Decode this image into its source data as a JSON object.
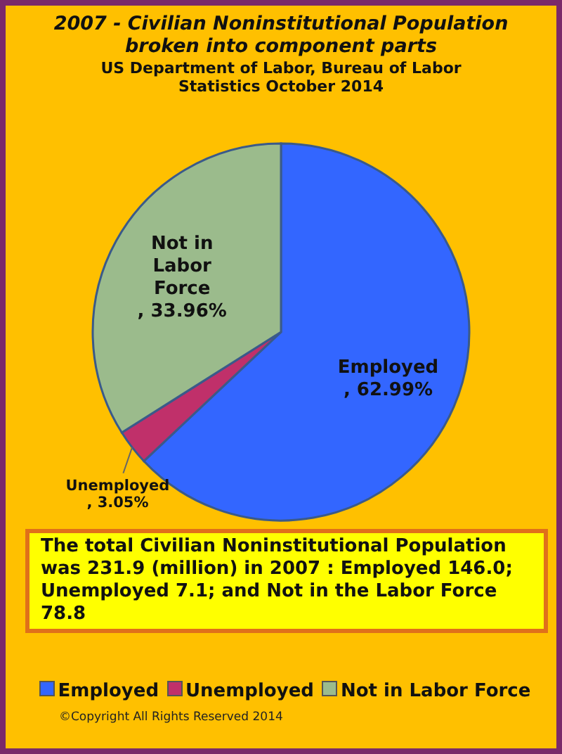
{
  "chart_data": {
    "type": "pie",
    "title": "2007 - Civilian Noninstitutional Population broken  into component parts",
    "subtitle": "US Department  of Labor, Bureau of Labor Statistics October 2014",
    "categories": [
      "Employed",
      "Unemployed",
      "Not in Labor Force"
    ],
    "values": [
      62.99,
      3.05,
      33.96
    ],
    "colors": [
      "#3366ff",
      "#c0306a",
      "#9bbb8c"
    ],
    "value_labels": [
      ", 62.99%",
      ", 3.05%",
      ", 33.96%"
    ],
    "legend": "bottom",
    "annotations": [
      "The total Civilian Noninstitutional Population was 231.9 (million) in 2007 :  Employed 146.0; Unemployed 7.1; and Not in the Labor Force  78.8",
      "©Copyright All Rights Reserved 2014"
    ]
  }
}
